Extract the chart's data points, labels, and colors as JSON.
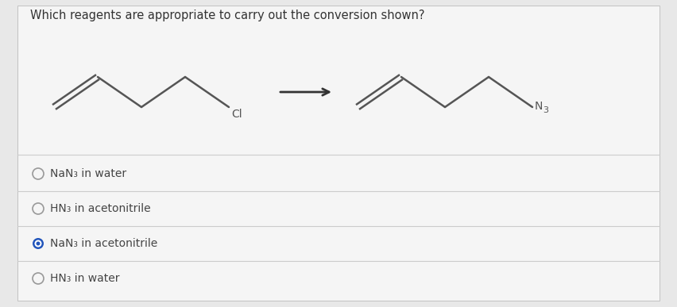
{
  "title": "Which reagents are appropriate to carry out the conversion shown?",
  "title_fontsize": 10.5,
  "background_color": "#e8e8e8",
  "panel_color": "#f5f5f5",
  "options": [
    {
      "text": "NaN₃ in water",
      "selected": false
    },
    {
      "text": "HN₃ in acetonitrile",
      "selected": false
    },
    {
      "text": "NaN₃ in acetonitrile",
      "selected": true
    },
    {
      "text": "HN₃ in water",
      "selected": false
    }
  ],
  "selected_color": "#2255bb",
  "unselected_color": "#999999",
  "line_color": "#444444",
  "divider_color": "#cccccc",
  "option_fontsize": 10,
  "arrow_color": "#333333",
  "mol_color": "#555555",
  "mol_linewidth": 1.8
}
